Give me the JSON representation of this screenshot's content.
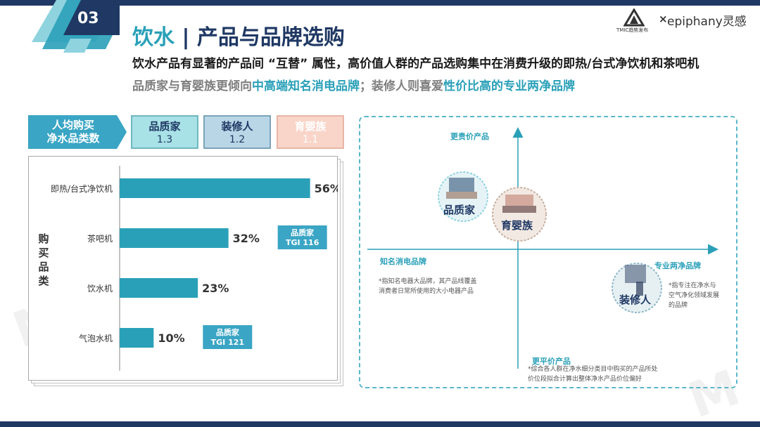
{
  "badge": {
    "number": "03"
  },
  "header": {
    "title_main": "饮水",
    "title_sep": " | ",
    "title_rest": "产品与品牌选购",
    "subtitle1": "饮水产品有显著的产品间 “互替” 属性，高价值人群的产品选购集中在消费升级的即热/台式净饮机和茶吧机",
    "subtitle2_a": "品质家与育婴族更倾向",
    "subtitle2_b": "中高端知名消电品牌",
    "subtitle2_c": "；装修人则喜爱",
    "subtitle2_d": "性价比高的专业两净品牌"
  },
  "logos": {
    "tmic": "TMIC趋势发布",
    "x": "×",
    "epiphany": "epiphany灵感"
  },
  "tabs": {
    "header_l1": "人均购买",
    "header_l2": "净水品类数",
    "items": [
      {
        "name": "品质家",
        "value": "1.3"
      },
      {
        "name": "装修人",
        "value": "1.2"
      },
      {
        "name": "育婴族",
        "value": "1.1"
      }
    ]
  },
  "chart_data": {
    "type": "bar",
    "orientation": "horizontal",
    "ylabel": "购买品类",
    "categories": [
      "即热/台式净饮机",
      "茶吧机",
      "饮水机",
      "气泡水机"
    ],
    "values": [
      56,
      32,
      23,
      10
    ],
    "value_labels": [
      "56%",
      "32%",
      "23%",
      "10%"
    ],
    "xlim": [
      0,
      60
    ],
    "bar_color": "#2aa0b8",
    "tags": [
      {
        "category": "茶吧机",
        "line1": "品质家",
        "line2": "TGI 116"
      },
      {
        "category": "气泡水机",
        "line1": "品质家",
        "line2": "TGI 121"
      }
    ]
  },
  "quadrant": {
    "top_label": "更贵价产品",
    "bottom_label": "更平价产品",
    "left_label": "知名消电品牌",
    "right_label": "专业两净品牌",
    "note_left": [
      "*指知名电器大品牌，其产品线覆盖",
      "消费者日常所使用的大小电器产品"
    ],
    "note_right": [
      "*指专注在净水与",
      "空气净化领域发展",
      "的品牌"
    ],
    "note_bottom": [
      "*综合各人群在净水细分类目中购买的产品所处",
      "价位段拟合计算出整体净水产品价位偏好"
    ],
    "personas": [
      "品质家",
      "育婴族",
      "装修人"
    ]
  },
  "colors": {
    "navy": "#1f3864",
    "teal": "#2aa0b8",
    "gray": "#7f7f7f"
  }
}
